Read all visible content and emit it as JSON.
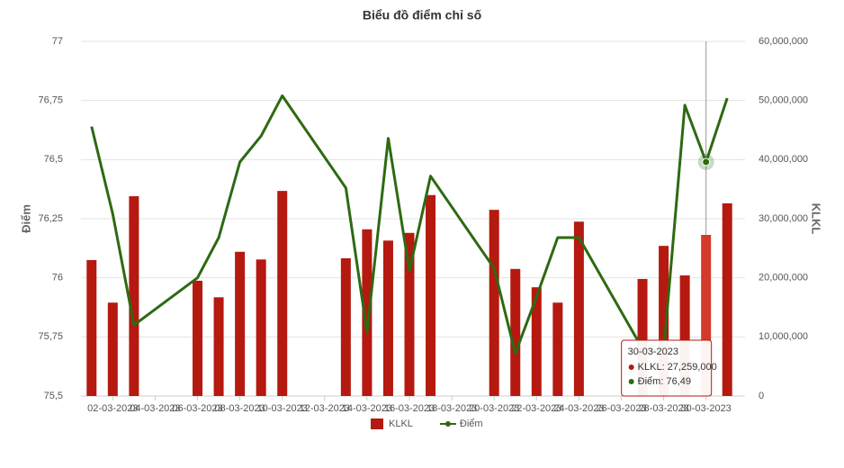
{
  "chart_data": {
    "type": "combo",
    "title": "Biểu đồ điểm chỉ số",
    "y_label": "Điểm",
    "y2_label": "KLKL",
    "x": [
      "01-03-2023",
      "02-03-2023",
      "03-03-2023",
      "06-03-2023",
      "07-03-2023",
      "08-03-2023",
      "09-03-2023",
      "10-03-2023",
      "13-03-2023",
      "14-03-2023",
      "15-03-2023",
      "16-03-2023",
      "17-03-2023",
      "20-03-2023",
      "21-03-2023",
      "22-03-2023",
      "23-03-2023",
      "24-03-2023",
      "27-03-2023",
      "28-03-2023",
      "29-03-2023",
      "30-03-2023",
      "31-03-2023"
    ],
    "xlim": [
      "01-03-2023",
      "31-03-2023"
    ],
    "xticks": [
      "02-03-2023",
      "04-03-2023",
      "06-03-2023",
      "08-03-2023",
      "10-03-2023",
      "12-03-2023",
      "14-03-2023",
      "16-03-2023",
      "18-03-2023",
      "20-03-2023",
      "22-03-2023",
      "24-03-2023",
      "26-03-2023",
      "28-03-2023",
      "30-03-2023"
    ],
    "ylim": [
      75.5,
      77
    ],
    "yticks": [
      {
        "value": 75.5,
        "label": "75,5"
      },
      {
        "value": 75.75,
        "label": "75,75"
      },
      {
        "value": 76,
        "label": "76"
      },
      {
        "value": 76.25,
        "label": "76,25"
      },
      {
        "value": 76.5,
        "label": "76,5"
      },
      {
        "value": 76.75,
        "label": "76,75"
      },
      {
        "value": 77,
        "label": "77"
      }
    ],
    "y2lim": [
      0,
      60000000
    ],
    "y2ticks": [
      0,
      {
        "value": 10000000,
        "label": "10,000,000"
      },
      {
        "value": 20000000,
        "label": "20,000,000"
      },
      {
        "value": 30000000,
        "label": "30,000,000"
      },
      {
        "value": 40000000,
        "label": "40,000,000"
      },
      {
        "value": 50000000,
        "label": "50,000,000"
      },
      {
        "value": 60000000,
        "label": "60,000,000"
      }
    ],
    "grid": true,
    "legend": "bottom",
    "series": [
      {
        "name": "KLKL",
        "type": "bar",
        "axis": "y2",
        "color": "#b5190f",
        "highlight_color": "#d43a2c",
        "values": [
          23000000,
          15800000,
          33800000,
          19500000,
          16700000,
          24400000,
          23100000,
          34700000,
          23300000,
          28200000,
          26300000,
          27600000,
          34000000,
          31500000,
          21500000,
          18400000,
          15800000,
          29500000,
          19800000,
          25400000,
          20400000,
          27259000,
          32600000
        ]
      },
      {
        "name": "Điểm",
        "type": "line",
        "color": "#2d6a12",
        "values": [
          76.64,
          76.27,
          75.8,
          76.0,
          76.17,
          76.49,
          76.6,
          76.77,
          76.38,
          75.77,
          76.59,
          76.03,
          76.43,
          76.04,
          75.68,
          75.92,
          76.17,
          76.17,
          75.7,
          75.69,
          76.73,
          76.49,
          76.76
        ]
      }
    ],
    "tooltip": {
      "title": "30-03-2023",
      "rows": [
        "KLKL: 27,259,000",
        "Điểm: 76,49"
      ]
    }
  }
}
